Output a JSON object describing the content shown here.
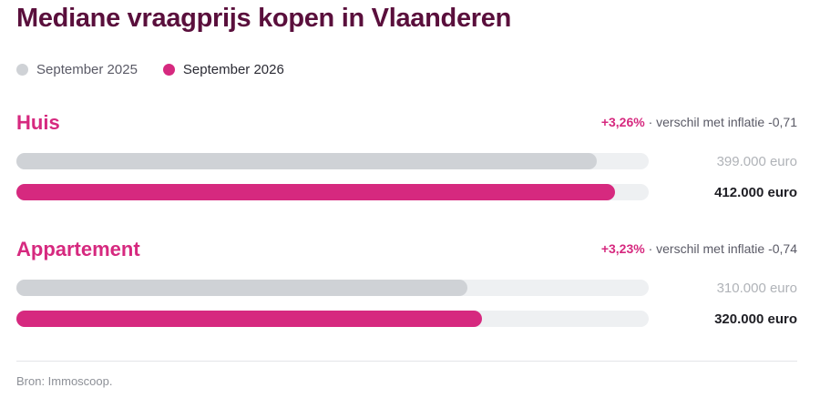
{
  "title": "Mediane vraagprijs kopen in Vlaanderen",
  "legend": [
    {
      "label": "September 2025",
      "color": "#cfd2d6"
    },
    {
      "label": "September 2026",
      "color": "#d6297f"
    }
  ],
  "chart_data": {
    "type": "bar",
    "title": "Mediane vraagprijs kopen in Vlaanderen",
    "orientation": "horizontal",
    "unit": "euro",
    "xlim": [
      0,
      435000
    ],
    "categories": [
      "Huis",
      "Appartement"
    ],
    "series": [
      {
        "name": "September 2025",
        "color": "#cfd2d6",
        "values": [
          399000,
          310000
        ],
        "labels": [
          "399.000 euro",
          "310.000 euro"
        ]
      },
      {
        "name": "September 2026",
        "color": "#d6297f",
        "values": [
          412000,
          320000
        ],
        "labels": [
          "412.000 euro",
          "320.000 euro"
        ]
      }
    ],
    "annotations": [
      {
        "category": "Huis",
        "change": "+3,26%",
        "note": " · verschil met inflatie -0,71"
      },
      {
        "category": "Appartement",
        "change": "+3,23%",
        "note": " · verschil met inflatie -0,74"
      }
    ],
    "legend_position": "top-left",
    "grid": false
  },
  "source": "Bron: Immoscoop."
}
